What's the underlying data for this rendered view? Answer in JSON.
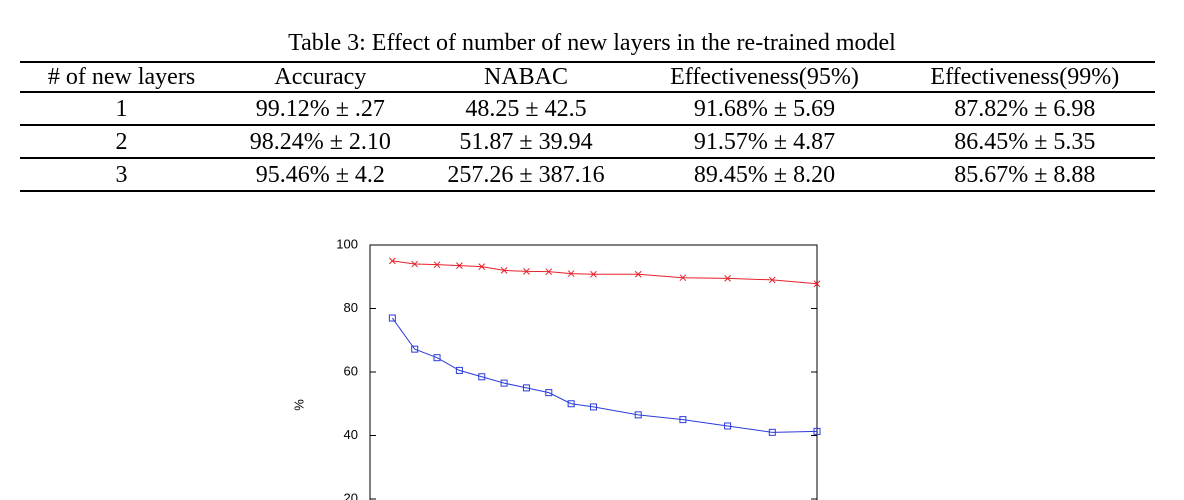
{
  "table": {
    "caption": "Table 3: Effect of number of new layers in the re-trained model",
    "header": [
      "# of new layers",
      "Accuracy",
      "NABAC",
      "Effectiveness(95%)",
      "Effectiveness(99%)"
    ],
    "rows": [
      [
        "1",
        "99.12% ± .27",
        "48.25 ± 42.5",
        "91.68% ± 5.69",
        "87.82% ± 6.98"
      ],
      [
        "2",
        "98.24% ± 2.10",
        "51.87 ± 39.94",
        "91.57% ± 4.87",
        "86.45% ± 5.35"
      ],
      [
        "3",
        "95.46% ± 4.2",
        "257.26 ± 387.16",
        "89.45% ± 8.20",
        "85.67% ± 8.88"
      ]
    ]
  },
  "chart_data": {
    "type": "line",
    "ylabel": "%",
    "x": [
      1,
      2,
      3,
      4,
      5,
      6,
      7,
      8,
      9,
      10,
      12,
      14,
      16,
      18,
      20
    ],
    "xlim": [
      0,
      20
    ],
    "ylim": [
      20,
      100
    ],
    "yticks": [
      20,
      40,
      60,
      80,
      100
    ],
    "series": [
      {
        "color": "#e8212b",
        "marker": "x",
        "values": [
          95,
          94,
          93.8,
          93.5,
          93.2,
          92,
          91.7,
          91.6,
          91,
          90.8,
          90.8,
          89.7,
          89.5,
          89,
          87.8
        ]
      },
      {
        "color": "#2b3bd8",
        "marker": "square",
        "values": [
          77,
          67.2,
          64.5,
          60.5,
          58.5,
          56.5,
          55,
          53.5,
          50,
          49,
          46.5,
          45,
          43,
          41,
          41.3
        ]
      }
    ]
  }
}
